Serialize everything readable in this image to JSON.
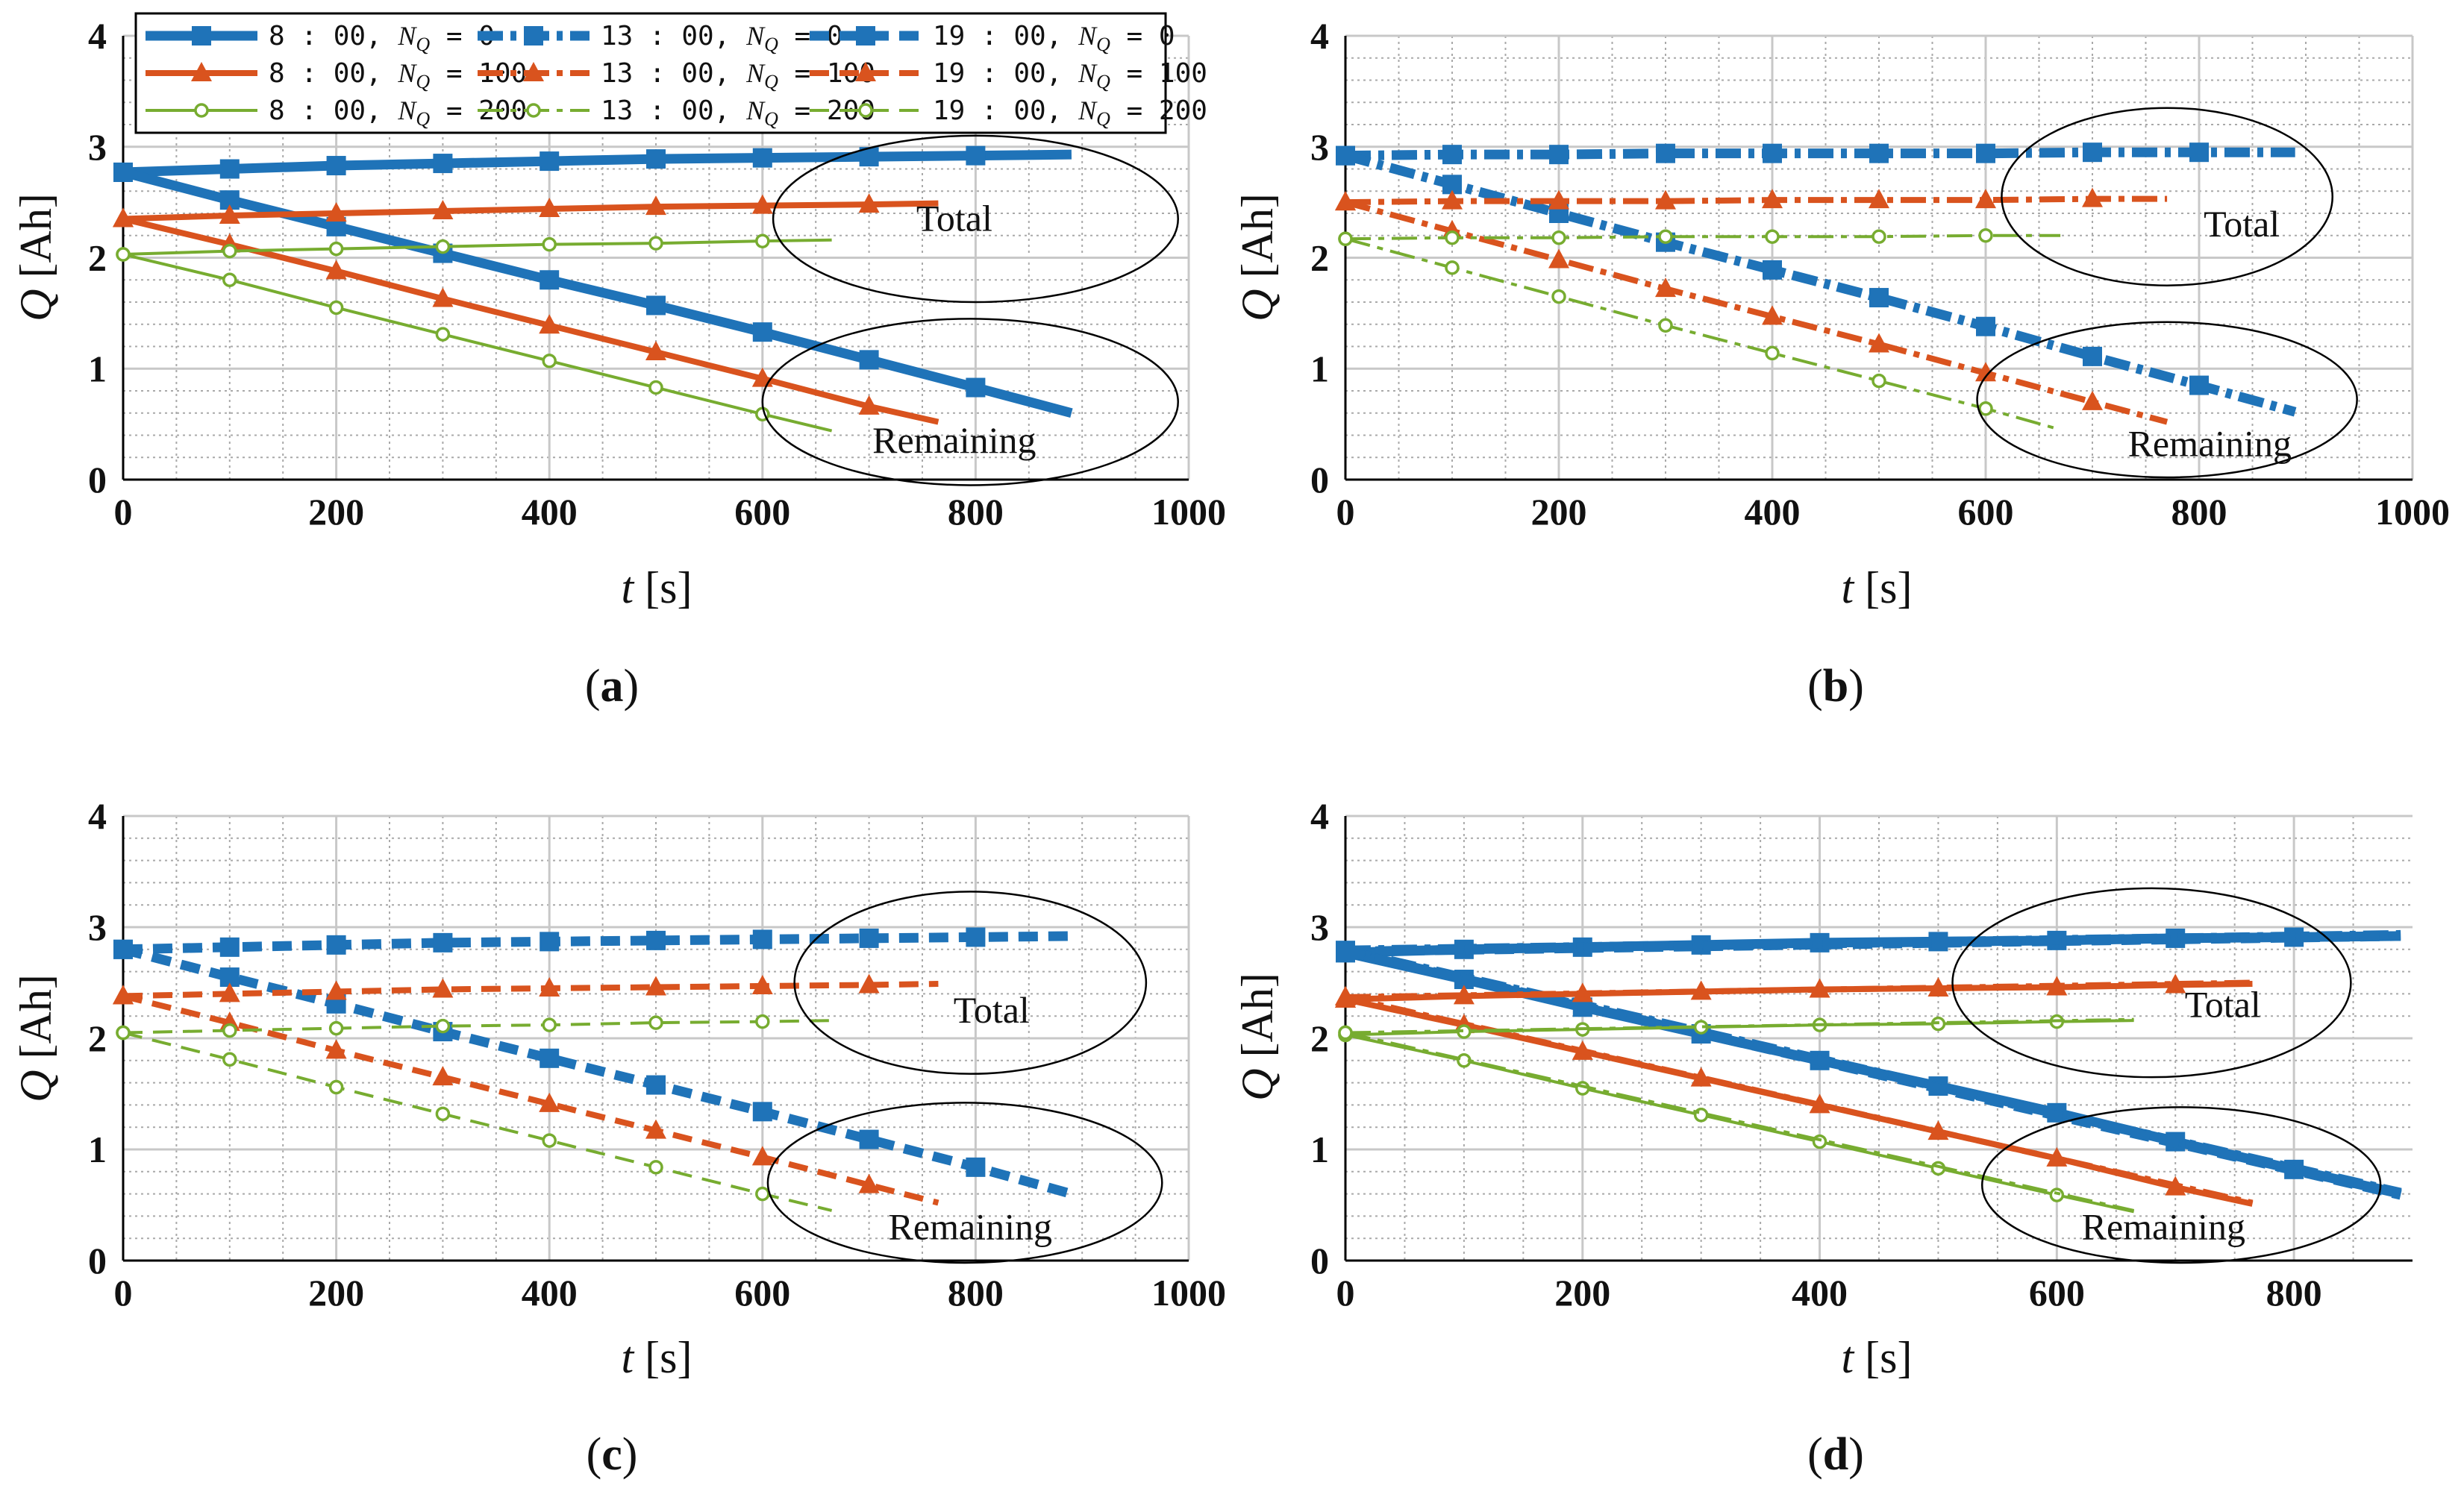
{
  "chart_data": [
    {
      "panel": "a",
      "type": "line",
      "caption_prefix": "(",
      "caption_letter": "a",
      "caption_suffix": ")",
      "xlabel_var": "t",
      "xlabel_unit": " [s]",
      "ylabel_var": "Q",
      "ylabel_unit": " [Ah]",
      "xlim": [
        0,
        1000
      ],
      "ylim": [
        0,
        4
      ],
      "xticks": [
        0,
        200,
        400,
        600,
        800,
        1000
      ],
      "yticks": [
        0,
        1,
        2,
        3,
        4
      ],
      "grid": true,
      "annotations": [
        {
          "text": "Total",
          "x": 780,
          "y": 2.35,
          "ellipse_cx": 800,
          "ellipse_cy": 2.35,
          "ellipse_rx": 190,
          "ellipse_ry": 0.75
        },
        {
          "text": "Remaining",
          "x": 780,
          "y": 0.35,
          "ellipse_cx": 795,
          "ellipse_cy": 0.7,
          "ellipse_rx": 195,
          "ellipse_ry": 0.75
        }
      ],
      "series": [
        {
          "name": "8:00, NQ=0 total",
          "group": 0,
          "time": "8:00",
          "x": [
            0,
            100,
            200,
            300,
            400,
            500,
            600,
            700,
            800,
            890
          ],
          "y": [
            2.77,
            2.8,
            2.83,
            2.85,
            2.87,
            2.89,
            2.9,
            2.91,
            2.92,
            2.93
          ]
        },
        {
          "name": "8:00, NQ=0 remaining",
          "group": 0,
          "time": "8:00",
          "x": [
            0,
            100,
            200,
            300,
            400,
            500,
            600,
            700,
            800,
            890
          ],
          "y": [
            2.77,
            2.52,
            2.28,
            2.04,
            1.8,
            1.57,
            1.33,
            1.08,
            0.83,
            0.6
          ]
        },
        {
          "name": "8:00, NQ=100 total",
          "group": 1,
          "time": "8:00",
          "x": [
            0,
            100,
            200,
            300,
            400,
            500,
            600,
            700,
            765
          ],
          "y": [
            2.35,
            2.38,
            2.4,
            2.42,
            2.44,
            2.46,
            2.47,
            2.48,
            2.49
          ]
        },
        {
          "name": "8:00, NQ=100 remaining",
          "group": 1,
          "time": "8:00",
          "x": [
            0,
            100,
            200,
            300,
            400,
            500,
            600,
            700,
            765
          ],
          "y": [
            2.35,
            2.12,
            1.88,
            1.63,
            1.39,
            1.15,
            0.91,
            0.66,
            0.52
          ]
        },
        {
          "name": "8:00, NQ=200 total",
          "group": 2,
          "time": "8:00",
          "x": [
            0,
            100,
            200,
            300,
            400,
            500,
            600,
            665
          ],
          "y": [
            2.03,
            2.06,
            2.08,
            2.1,
            2.12,
            2.13,
            2.15,
            2.16
          ]
        },
        {
          "name": "8:00, NQ=200 remaining",
          "group": 2,
          "time": "8:00",
          "x": [
            0,
            100,
            200,
            300,
            400,
            500,
            600,
            665
          ],
          "y": [
            2.03,
            1.8,
            1.55,
            1.31,
            1.07,
            0.83,
            0.59,
            0.44
          ]
        }
      ]
    },
    {
      "panel": "b",
      "type": "line",
      "caption_prefix": "(",
      "caption_letter": "b",
      "caption_suffix": ")",
      "xlabel_var": "t",
      "xlabel_unit": " [s]",
      "ylabel_var": "Q",
      "ylabel_unit": " [Ah]",
      "xlim": [
        0,
        1000
      ],
      "ylim": [
        0,
        4
      ],
      "xticks": [
        0,
        200,
        400,
        600,
        800,
        1000
      ],
      "yticks": [
        0,
        1,
        2,
        3,
        4
      ],
      "grid": true,
      "annotations": [
        {
          "text": "Total",
          "x": 840,
          "y": 2.3,
          "ellipse_cx": 770,
          "ellipse_cy": 2.55,
          "ellipse_rx": 155,
          "ellipse_ry": 0.8
        },
        {
          "text": "Remaining",
          "x": 810,
          "y": 0.32,
          "ellipse_cx": 770,
          "ellipse_cy": 0.72,
          "ellipse_rx": 178,
          "ellipse_ry": 0.7
        }
      ],
      "series": [
        {
          "name": "13:00, NQ=0 total",
          "group": 0,
          "time": "13:00",
          "x": [
            0,
            100,
            200,
            300,
            400,
            500,
            600,
            700,
            800,
            890
          ],
          "y": [
            2.92,
            2.93,
            2.93,
            2.94,
            2.94,
            2.94,
            2.94,
            2.95,
            2.95,
            2.95
          ]
        },
        {
          "name": "13:00, NQ=0 remaining",
          "group": 0,
          "time": "13:00",
          "x": [
            0,
            100,
            200,
            300,
            400,
            500,
            600,
            700,
            800,
            890
          ],
          "y": [
            2.92,
            2.66,
            2.4,
            2.14,
            1.89,
            1.64,
            1.38,
            1.11,
            0.85,
            0.61
          ]
        },
        {
          "name": "13:00, NQ=100 total",
          "group": 1,
          "time": "13:00",
          "x": [
            0,
            100,
            200,
            300,
            400,
            500,
            600,
            700,
            770
          ],
          "y": [
            2.5,
            2.51,
            2.51,
            2.51,
            2.52,
            2.52,
            2.52,
            2.53,
            2.53
          ]
        },
        {
          "name": "13:00, NQ=100 remaining",
          "group": 1,
          "time": "13:00",
          "x": [
            0,
            100,
            200,
            300,
            400,
            500,
            600,
            700,
            770
          ],
          "y": [
            2.5,
            2.24,
            1.98,
            1.72,
            1.47,
            1.22,
            0.96,
            0.7,
            0.52
          ]
        },
        {
          "name": "13:00, NQ=200 total",
          "group": 2,
          "time": "13:00",
          "x": [
            0,
            100,
            200,
            300,
            400,
            500,
            600,
            670
          ],
          "y": [
            2.17,
            2.18,
            2.18,
            2.19,
            2.19,
            2.19,
            2.2,
            2.2
          ]
        },
        {
          "name": "13:00, NQ=200 remaining",
          "group": 2,
          "time": "13:00",
          "x": [
            0,
            100,
            200,
            300,
            400,
            500,
            600,
            670
          ],
          "y": [
            2.17,
            1.91,
            1.65,
            1.39,
            1.14,
            0.89,
            0.64,
            0.45
          ]
        }
      ]
    },
    {
      "panel": "c",
      "type": "line",
      "caption_prefix": "(",
      "caption_letter": "c",
      "caption_suffix": ")",
      "xlabel_var": "t",
      "xlabel_unit": " [s]",
      "ylabel_var": "Q",
      "ylabel_unit": " [Ah]",
      "xlim": [
        0,
        1000
      ],
      "ylim": [
        0,
        4
      ],
      "xticks": [
        0,
        200,
        400,
        600,
        800,
        1000
      ],
      "yticks": [
        0,
        1,
        2,
        3,
        4
      ],
      "grid": true,
      "annotations": [
        {
          "text": "Total",
          "x": 815,
          "y": 2.25,
          "ellipse_cx": 795,
          "ellipse_cy": 2.5,
          "ellipse_rx": 165,
          "ellipse_ry": 0.82
        },
        {
          "text": "Remaining",
          "x": 795,
          "y": 0.3,
          "ellipse_cx": 790,
          "ellipse_cy": 0.7,
          "ellipse_rx": 185,
          "ellipse_ry": 0.72
        }
      ],
      "series": [
        {
          "name": "19:00, NQ=0 total",
          "group": 0,
          "time": "19:00",
          "x": [
            0,
            100,
            200,
            300,
            400,
            500,
            600,
            700,
            800,
            890
          ],
          "y": [
            2.8,
            2.82,
            2.84,
            2.86,
            2.87,
            2.88,
            2.89,
            2.9,
            2.91,
            2.92
          ]
        },
        {
          "name": "19:00, NQ=0 remaining",
          "group": 0,
          "time": "19:00",
          "x": [
            0,
            100,
            200,
            300,
            400,
            500,
            600,
            700,
            800,
            890
          ],
          "y": [
            2.8,
            2.55,
            2.31,
            2.06,
            1.82,
            1.58,
            1.34,
            1.09,
            0.84,
            0.6
          ]
        },
        {
          "name": "19:00, NQ=100 total",
          "group": 1,
          "time": "19:00",
          "x": [
            0,
            100,
            200,
            300,
            400,
            500,
            600,
            700,
            765
          ],
          "y": [
            2.38,
            2.4,
            2.42,
            2.44,
            2.45,
            2.46,
            2.47,
            2.48,
            2.49
          ]
        },
        {
          "name": "19:00, NQ=100 remaining",
          "group": 1,
          "time": "19:00",
          "x": [
            0,
            100,
            200,
            300,
            400,
            500,
            600,
            700,
            765
          ],
          "y": [
            2.38,
            2.14,
            1.89,
            1.65,
            1.41,
            1.17,
            0.93,
            0.68,
            0.52
          ]
        },
        {
          "name": "19:00, NQ=200 total",
          "group": 2,
          "time": "19:00",
          "x": [
            0,
            100,
            200,
            300,
            400,
            500,
            600,
            665
          ],
          "y": [
            2.05,
            2.07,
            2.09,
            2.11,
            2.12,
            2.14,
            2.15,
            2.16
          ]
        },
        {
          "name": "19:00, NQ=200 remaining",
          "group": 2,
          "time": "19:00",
          "x": [
            0,
            100,
            200,
            300,
            400,
            500,
            600,
            665
          ],
          "y": [
            2.05,
            1.81,
            1.56,
            1.32,
            1.08,
            0.84,
            0.6,
            0.45
          ]
        }
      ]
    },
    {
      "panel": "d",
      "type": "line",
      "caption_prefix": "(",
      "caption_letter": "d",
      "caption_suffix": ")",
      "xlabel_var": "t",
      "xlabel_unit": " [s]",
      "ylabel_var": "Q",
      "ylabel_unit": " [Ah]",
      "xlim": [
        0,
        900
      ],
      "ylim": [
        0,
        4
      ],
      "xticks": [
        0,
        200,
        400,
        600,
        800
      ],
      "yticks": [
        0,
        1,
        2,
        3,
        4
      ],
      "grid": true,
      "annotations": [
        {
          "text": "Total",
          "x": 740,
          "y": 2.3,
          "ellipse_cx": 680,
          "ellipse_cy": 2.5,
          "ellipse_rx": 168,
          "ellipse_ry": 0.85
        },
        {
          "text": "Remaining",
          "x": 690,
          "y": 0.3,
          "ellipse_cx": 705,
          "ellipse_cy": 0.68,
          "ellipse_rx": 168,
          "ellipse_ry": 0.7
        }
      ],
      "series": [
        {
          "name": "8:00 NQ=0 total",
          "group": 0,
          "time": "8:00",
          "x": [
            0,
            100,
            200,
            300,
            400,
            500,
            600,
            700,
            800,
            890
          ],
          "y": [
            2.77,
            2.8,
            2.82,
            2.84,
            2.86,
            2.87,
            2.88,
            2.9,
            2.91,
            2.92
          ]
        },
        {
          "name": "8:00 NQ=0 remaining",
          "group": 0,
          "time": "8:00",
          "x": [
            0,
            100,
            200,
            300,
            400,
            500,
            600,
            700,
            800,
            890
          ],
          "y": [
            2.77,
            2.53,
            2.28,
            2.04,
            1.8,
            1.57,
            1.33,
            1.07,
            0.82,
            0.6
          ]
        },
        {
          "name": "13:00 NQ=0 total",
          "group": 0,
          "time": "13:00",
          "x": [
            0,
            890
          ],
          "y": [
            2.79,
            2.93
          ]
        },
        {
          "name": "13:00 NQ=0 remaining",
          "group": 0,
          "time": "13:00",
          "x": [
            0,
            890
          ],
          "y": [
            2.79,
            0.61
          ]
        },
        {
          "name": "19:00 NQ=0 total",
          "group": 0,
          "time": "19:00",
          "x": [
            0,
            890
          ],
          "y": [
            2.78,
            2.92
          ]
        },
        {
          "name": "19:00 NQ=0 remaining",
          "group": 0,
          "time": "19:00",
          "x": [
            0,
            890
          ],
          "y": [
            2.78,
            0.59
          ]
        },
        {
          "name": "8:00 NQ=100 total",
          "group": 1,
          "time": "8:00",
          "x": [
            0,
            100,
            200,
            300,
            400,
            500,
            600,
            700,
            765
          ],
          "y": [
            2.35,
            2.38,
            2.4,
            2.42,
            2.44,
            2.45,
            2.46,
            2.48,
            2.49
          ]
        },
        {
          "name": "8:00 NQ=100 remaining",
          "group": 1,
          "time": "8:00",
          "x": [
            0,
            100,
            200,
            300,
            400,
            500,
            600,
            700,
            765
          ],
          "y": [
            2.35,
            2.12,
            1.88,
            1.64,
            1.4,
            1.16,
            0.92,
            0.66,
            0.51
          ]
        },
        {
          "name": "13:00 NQ=100 total",
          "group": 1,
          "time": "13:00",
          "x": [
            0,
            765
          ],
          "y": [
            2.37,
            2.5
          ]
        },
        {
          "name": "13:00 NQ=100 remaining",
          "group": 1,
          "time": "13:00",
          "x": [
            0,
            765
          ],
          "y": [
            2.37,
            0.52
          ]
        },
        {
          "name": "8:00 NQ=200 total",
          "group": 2,
          "time": "8:00",
          "x": [
            0,
            100,
            200,
            300,
            400,
            500,
            600,
            665
          ],
          "y": [
            2.03,
            2.06,
            2.08,
            2.1,
            2.12,
            2.13,
            2.15,
            2.16
          ]
        },
        {
          "name": "8:00 NQ=200 remaining",
          "group": 2,
          "time": "8:00",
          "x": [
            0,
            100,
            200,
            300,
            400,
            500,
            600,
            665
          ],
          "y": [
            2.03,
            1.8,
            1.55,
            1.31,
            1.07,
            0.83,
            0.59,
            0.44
          ]
        },
        {
          "name": "13:00 NQ=200 total",
          "group": 2,
          "time": "13:00",
          "x": [
            0,
            665
          ],
          "y": [
            2.05,
            2.17
          ]
        },
        {
          "name": "13:00 NQ=200 remaining",
          "group": 2,
          "time": "13:00",
          "x": [
            0,
            665
          ],
          "y": [
            2.05,
            0.45
          ]
        }
      ]
    }
  ],
  "legend": {
    "placement": "top-left of panel a",
    "entries": [
      {
        "time": "8 : 00",
        "sep": ", ",
        "var": "N",
        "sub": "Q",
        "eq": " = 0",
        "group": 0,
        "dash": "solid"
      },
      {
        "time": "13 : 00",
        "sep": ", ",
        "var": "N",
        "sub": "Q",
        "eq": " = 0",
        "group": 0,
        "dash": "dashdot"
      },
      {
        "time": "19 : 00",
        "sep": ", ",
        "var": "N",
        "sub": "Q",
        "eq": " = 0",
        "group": 0,
        "dash": "dashed"
      },
      {
        "time": "8 : 00",
        "sep": ", ",
        "var": "N",
        "sub": "Q",
        "eq": " = 100",
        "group": 1,
        "dash": "solid"
      },
      {
        "time": "13 : 00",
        "sep": ", ",
        "var": "N",
        "sub": "Q",
        "eq": " = 100",
        "group": 1,
        "dash": "dashdot"
      },
      {
        "time": "19 : 00",
        "sep": ", ",
        "var": "N",
        "sub": "Q",
        "eq": " = 100",
        "group": 1,
        "dash": "dashed"
      },
      {
        "time": "8 : 00",
        "sep": ", ",
        "var": "N",
        "sub": "Q",
        "eq": " = 200",
        "group": 2,
        "dash": "solid"
      },
      {
        "time": "13 : 00",
        "sep": ", ",
        "var": "N",
        "sub": "Q",
        "eq": " = 200",
        "group": 2,
        "dash": "dashdot"
      },
      {
        "time": "19 : 00",
        "sep": ", ",
        "var": "N",
        "sub": "Q",
        "eq": " = 200",
        "group": 2,
        "dash": "dashed"
      }
    ]
  },
  "styles": {
    "colors": [
      "#1f73b8",
      "#d9531e",
      "#77ac30"
    ],
    "markers": [
      "square",
      "triangle",
      "circle"
    ],
    "grid_major": "#c8c8c8",
    "grid_minor": "#a9a9a9",
    "axis": "#000000"
  }
}
